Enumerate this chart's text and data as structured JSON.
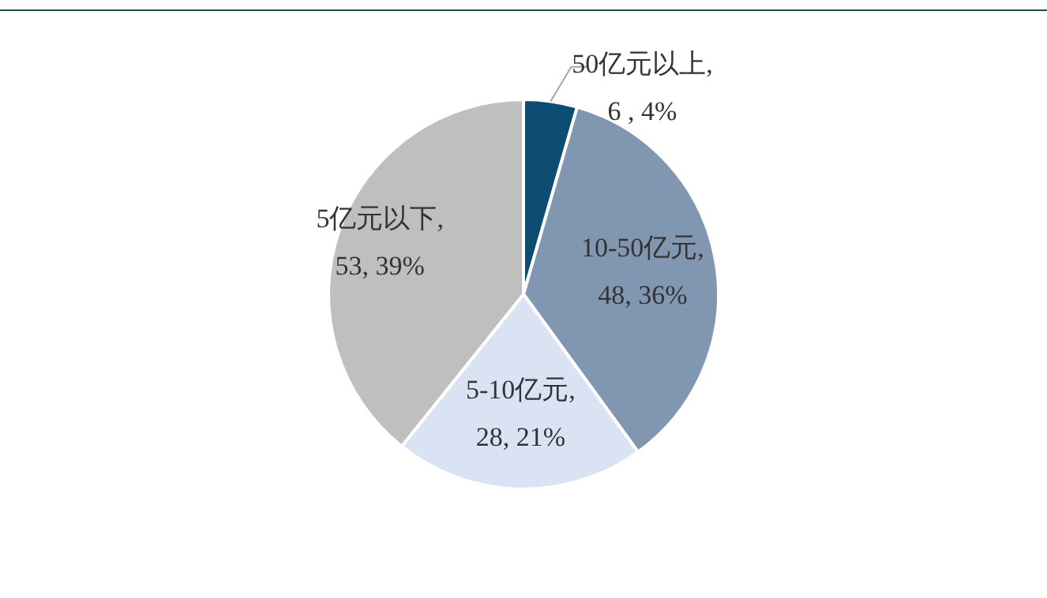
{
  "chart_data": {
    "type": "pie",
    "categories": [
      "50亿元以上",
      "10-50亿元",
      "5-10亿元",
      "5亿元以下"
    ],
    "values": [
      6,
      48,
      28,
      53
    ],
    "colors": [
      "#0e4d73",
      "#8196b1",
      "#dae3f3",
      "#bfbfbf"
    ],
    "value_labels": [
      ", 6 , 4%",
      ", 48, 36%",
      ", 28, 21%",
      ", 53, 39%"
    ],
    "legend": false
  }
}
